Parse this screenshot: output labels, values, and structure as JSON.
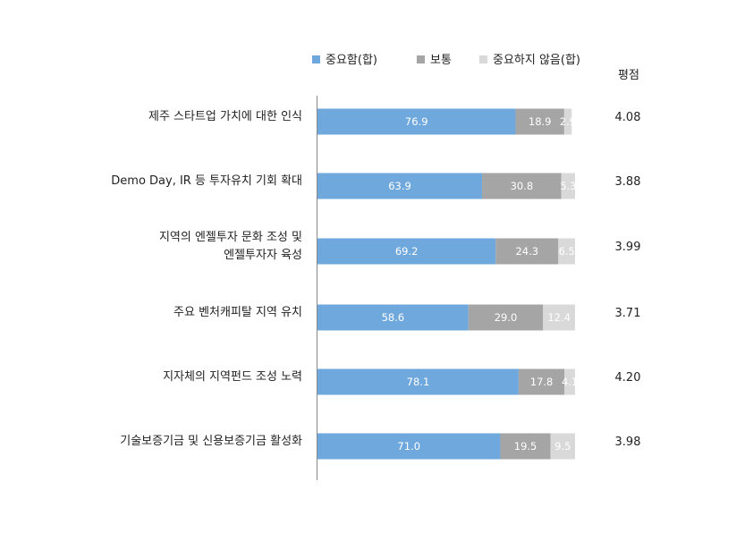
{
  "chart_data": {
    "type": "bar",
    "orientation": "horizontal",
    "stacked": true,
    "categories": [
      [
        "제주 스타트업 가치에 대한 인식"
      ],
      [
        "Demo Day, IR 등 투자유치 기회 확대"
      ],
      [
        "지역의 엔젤투자 문화 조성 및",
        "엔젤투자자 육성"
      ],
      [
        "주요 벤처캐피탈 지역 유치"
      ],
      [
        "지자체의 지역펀드 조성 노력"
      ],
      [
        "기술보증기금 및 신용보증기금 활성화"
      ]
    ],
    "series": [
      {
        "name": "중요함(합)",
        "color": "#6fa8dc",
        "values": [
          76.9,
          63.9,
          69.2,
          58.6,
          78.1,
          71.0
        ],
        "labels": [
          "76.9",
          "63.9",
          "69.2",
          "58.6",
          "78.1",
          "71.0"
        ]
      },
      {
        "name": "보통",
        "color": "#a5a5a5",
        "values": [
          18.9,
          30.8,
          24.3,
          29.0,
          17.8,
          19.5
        ],
        "labels": [
          "18.9",
          "30.8",
          "24.3",
          "29.0",
          "17.8",
          "19.5"
        ]
      },
      {
        "name": "중요하지 않음(합)",
        "color": "#d9d9d9",
        "values": [
          2.9,
          5.3,
          6.5,
          12.4,
          4.1,
          9.5
        ],
        "labels": [
          "2.9",
          "5.3",
          "6.5",
          "12.4",
          "4.1",
          "9.5"
        ]
      }
    ],
    "score_header": "평점",
    "scores": [
      "4.08",
      "3.88",
      "3.99",
      "3.71",
      "4.20",
      "3.98"
    ],
    "xlim": [
      0,
      100
    ],
    "grid": false,
    "legend_position": "top"
  }
}
